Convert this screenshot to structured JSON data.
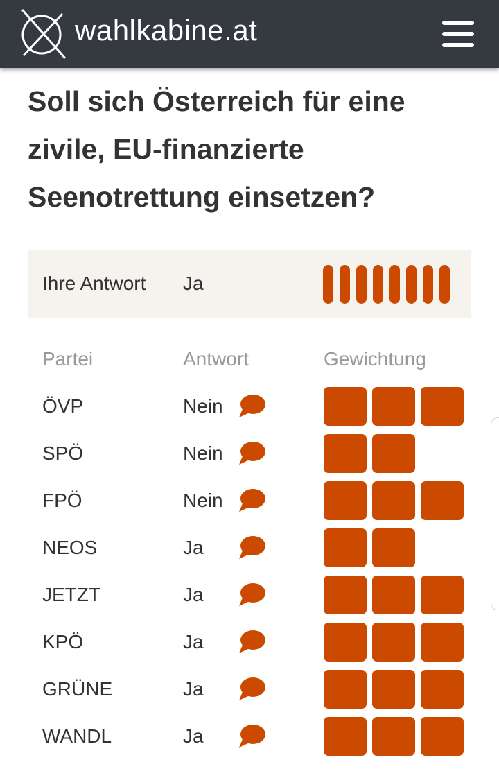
{
  "header": {
    "brand": "wahlkabine.at",
    "logo_icon": "ballot-cross-icon",
    "menu_icon": "hamburger-menu-icon"
  },
  "question": "Soll sich Österreich für eine zivile, EU-finanzierte Seenotrettung einsetzen?",
  "your_answer": {
    "label": "Ihre Antwort",
    "value": "Ja",
    "weight_level": 8,
    "weight_max": 8
  },
  "table": {
    "headers": {
      "party": "Partei",
      "answer": "Antwort",
      "weight": "Gewichtung"
    },
    "rows": [
      {
        "party": "ÖVP",
        "answer": "Nein",
        "weight": 3
      },
      {
        "party": "SPÖ",
        "answer": "Nein",
        "weight": 2
      },
      {
        "party": "FPÖ",
        "answer": "Nein",
        "weight": 3
      },
      {
        "party": "NEOS",
        "answer": "Ja",
        "weight": 2
      },
      {
        "party": "JETZT",
        "answer": "Ja",
        "weight": 3
      },
      {
        "party": "KPÖ",
        "answer": "Ja",
        "weight": 3
      },
      {
        "party": "GRÜNE",
        "answer": "Ja",
        "weight": 3
      },
      {
        "party": "WANDL",
        "answer": "Ja",
        "weight": 3
      }
    ],
    "weight_max": 3,
    "comment_icon": "speech-bubble-icon"
  },
  "colors": {
    "accent": "#cc4a00",
    "header_bg": "#353a41",
    "answer_bg": "#f6f3ee",
    "muted_text": "#999999"
  }
}
